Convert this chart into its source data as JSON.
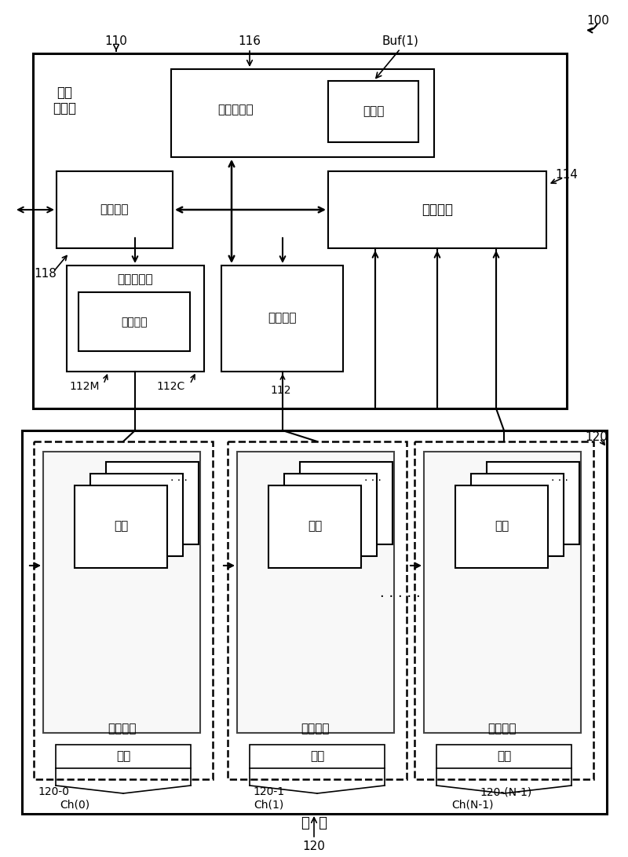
{
  "bg_color": "#ffffff",
  "line_color": "#000000",
  "fig_width": 8.0,
  "fig_height": 10.91,
  "label_100": "100",
  "label_110": "110",
  "label_116": "116",
  "label_buf1": "Buf(1)",
  "label_114": "114",
  "label_118": "118",
  "label_112M": "112M",
  "label_112C": "112C",
  "label_112": "112",
  "label_120": "120",
  "label_120_0": "120-0",
  "label_120_1": "120-1",
  "label_120_N1": "120-(N-1)",
  "label_ch0": "Ch(0)",
  "label_ch1": "Ch(1)",
  "label_chN1": "Ch(N-1)",
  "label_flash": "闪  存",
  "text_neicun_controller": "内存\n控制器",
  "text_buffer_memory": "缓冲存储器",
  "text_buffer": "缓冲器",
  "text_interface_logic": "接口逃辑",
  "text_control_logic": "控制逃辑",
  "text_rom": "只读存储器",
  "text_program_code": "程序代码",
  "text_micro_processor": "微处理器",
  "text_flash_chip": "闪存芯片",
  "text_block": "区块",
  "text_channel": "通道"
}
